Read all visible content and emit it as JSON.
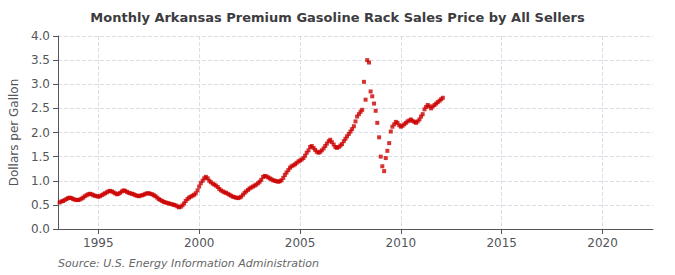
{
  "chart_data": {
    "type": "scatter",
    "title": "Monthly Arkansas Premium Gasoline Rack Sales Price by All Sellers",
    "ylabel": "Dollars per Gallon",
    "source": "Source: U.S. Energy Information Administration",
    "xlim": [
      1993.0,
      2022.5
    ],
    "ylim": [
      0.0,
      4.0
    ],
    "xticks": [
      1995,
      2000,
      2005,
      2010,
      2015,
      2020
    ],
    "yticks": [
      {
        "value": 0.0,
        "label": "0.0"
      },
      0.5,
      {
        "value": 1.0,
        "label": "1.0"
      },
      1.5,
      {
        "value": 2.0,
        "label": "2.0"
      },
      2.5,
      {
        "value": 3.0,
        "label": "3.0"
      },
      3.5,
      {
        "value": 4.0,
        "label": "4.0"
      }
    ],
    "grid": true,
    "color": "#cc0000",
    "marker": "square",
    "x": [
      1993.08,
      1993.17,
      1993.25,
      1993.33,
      1993.42,
      1993.5,
      1993.58,
      1993.67,
      1993.75,
      1993.83,
      1993.92,
      1994.0,
      1994.08,
      1994.17,
      1994.25,
      1994.33,
      1994.42,
      1994.5,
      1994.58,
      1994.67,
      1994.75,
      1994.83,
      1994.92,
      1995.0,
      1995.08,
      1995.17,
      1995.25,
      1995.33,
      1995.42,
      1995.5,
      1995.58,
      1995.67,
      1995.75,
      1995.83,
      1995.92,
      1996.0,
      1996.08,
      1996.17,
      1996.25,
      1996.33,
      1996.42,
      1996.5,
      1996.58,
      1996.67,
      1996.75,
      1996.83,
      1996.92,
      1997.0,
      1997.08,
      1997.17,
      1997.25,
      1997.33,
      1997.42,
      1997.5,
      1997.58,
      1997.67,
      1997.75,
      1997.83,
      1997.92,
      1998.0,
      1998.08,
      1998.17,
      1998.25,
      1998.33,
      1998.42,
      1998.5,
      1998.58,
      1998.67,
      1998.75,
      1998.83,
      1998.92,
      1999.0,
      1999.08,
      1999.17,
      1999.25,
      1999.33,
      1999.42,
      1999.5,
      1999.58,
      1999.67,
      1999.75,
      1999.83,
      1999.92,
      2000.0,
      2000.08,
      2000.17,
      2000.25,
      2000.33,
      2000.42,
      2000.5,
      2000.58,
      2000.67,
      2000.75,
      2000.83,
      2000.92,
      2001.0,
      2001.08,
      2001.17,
      2001.25,
      2001.33,
      2001.42,
      2001.5,
      2001.58,
      2001.67,
      2001.75,
      2001.83,
      2001.92,
      2002.0,
      2002.08,
      2002.17,
      2002.25,
      2002.33,
      2002.42,
      2002.5,
      2002.58,
      2002.67,
      2002.75,
      2002.83,
      2002.92,
      2003.0,
      2003.08,
      2003.17,
      2003.25,
      2003.33,
      2003.42,
      2003.5,
      2003.58,
      2003.67,
      2003.75,
      2003.83,
      2003.92,
      2004.0,
      2004.08,
      2004.17,
      2004.25,
      2004.33,
      2004.42,
      2004.5,
      2004.58,
      2004.67,
      2004.75,
      2004.83,
      2004.92,
      2005.0,
      2005.08,
      2005.17,
      2005.25,
      2005.33,
      2005.42,
      2005.5,
      2005.58,
      2005.67,
      2005.75,
      2005.83,
      2005.92,
      2006.0,
      2006.08,
      2006.17,
      2006.25,
      2006.33,
      2006.42,
      2006.5,
      2006.58,
      2006.67,
      2006.75,
      2006.83,
      2006.92,
      2007.0,
      2007.08,
      2007.17,
      2007.25,
      2007.33,
      2007.42,
      2007.5,
      2007.58,
      2007.67,
      2007.75,
      2007.83,
      2007.92,
      2008.0,
      2008.08,
      2008.17,
      2008.25,
      2008.33,
      2008.42,
      2008.5,
      2008.58,
      2008.67,
      2008.75,
      2008.83,
      2008.92,
      2009.0,
      2009.08,
      2009.17,
      2009.25,
      2009.33,
      2009.42,
      2009.5,
      2009.58,
      2009.67,
      2009.75,
      2009.83,
      2009.92,
      2010.0,
      2010.08,
      2010.17,
      2010.25,
      2010.33,
      2010.42,
      2010.5,
      2010.58,
      2010.67,
      2010.75,
      2010.83,
      2010.92,
      2011.0,
      2011.08,
      2011.17,
      2011.25,
      2011.33,
      2011.42,
      2011.5,
      2011.58,
      2011.67,
      2011.75,
      2011.83,
      2011.92,
      2012.0,
      2012.08
    ],
    "values": [
      0.55,
      0.57,
      0.58,
      0.6,
      0.62,
      0.64,
      0.65,
      0.64,
      0.62,
      0.61,
      0.6,
      0.6,
      0.61,
      0.63,
      0.65,
      0.68,
      0.7,
      0.72,
      0.73,
      0.72,
      0.7,
      0.69,
      0.68,
      0.67,
      0.68,
      0.7,
      0.72,
      0.74,
      0.76,
      0.78,
      0.79,
      0.78,
      0.76,
      0.74,
      0.72,
      0.73,
      0.75,
      0.78,
      0.8,
      0.79,
      0.77,
      0.75,
      0.74,
      0.73,
      0.72,
      0.7,
      0.69,
      0.68,
      0.69,
      0.7,
      0.71,
      0.73,
      0.74,
      0.74,
      0.73,
      0.72,
      0.7,
      0.68,
      0.65,
      0.62,
      0.6,
      0.58,
      0.56,
      0.55,
      0.54,
      0.53,
      0.52,
      0.51,
      0.5,
      0.49,
      0.47,
      0.45,
      0.46,
      0.49,
      0.53,
      0.58,
      0.62,
      0.65,
      0.67,
      0.69,
      0.71,
      0.74,
      0.8,
      0.88,
      0.95,
      1.0,
      1.05,
      1.08,
      1.05,
      1.0,
      0.97,
      0.94,
      0.92,
      0.9,
      0.87,
      0.83,
      0.8,
      0.78,
      0.76,
      0.75,
      0.73,
      0.71,
      0.69,
      0.67,
      0.66,
      0.65,
      0.64,
      0.65,
      0.67,
      0.71,
      0.75,
      0.78,
      0.81,
      0.84,
      0.86,
      0.88,
      0.9,
      0.92,
      0.95,
      0.98,
      1.02,
      1.08,
      1.1,
      1.09,
      1.07,
      1.05,
      1.03,
      1.01,
      1.0,
      0.99,
      0.98,
      0.99,
      1.01,
      1.06,
      1.12,
      1.17,
      1.22,
      1.27,
      1.3,
      1.32,
      1.34,
      1.37,
      1.4,
      1.42,
      1.44,
      1.47,
      1.52,
      1.58,
      1.63,
      1.7,
      1.72,
      1.68,
      1.64,
      1.6,
      1.58,
      1.6,
      1.63,
      1.67,
      1.72,
      1.77,
      1.82,
      1.85,
      1.8,
      1.75,
      1.7,
      1.68,
      1.7,
      1.73,
      1.76,
      1.82,
      1.87,
      1.92,
      1.97,
      2.02,
      2.07,
      2.13,
      2.23,
      2.33,
      2.38,
      2.43,
      2.47,
      3.05,
      2.68,
      3.5,
      3.45,
      2.85,
      2.75,
      2.6,
      2.45,
      2.2,
      1.9,
      1.5,
      1.3,
      1.2,
      1.47,
      1.62,
      1.78,
      2.02,
      2.12,
      2.17,
      2.22,
      2.2,
      2.15,
      2.12,
      2.14,
      2.17,
      2.2,
      2.23,
      2.25,
      2.27,
      2.24,
      2.22,
      2.2,
      2.23,
      2.27,
      2.33,
      2.38,
      2.48,
      2.53,
      2.57,
      2.54,
      2.5,
      2.54,
      2.57,
      2.6,
      2.63,
      2.66,
      2.69,
      2.72
    ]
  }
}
